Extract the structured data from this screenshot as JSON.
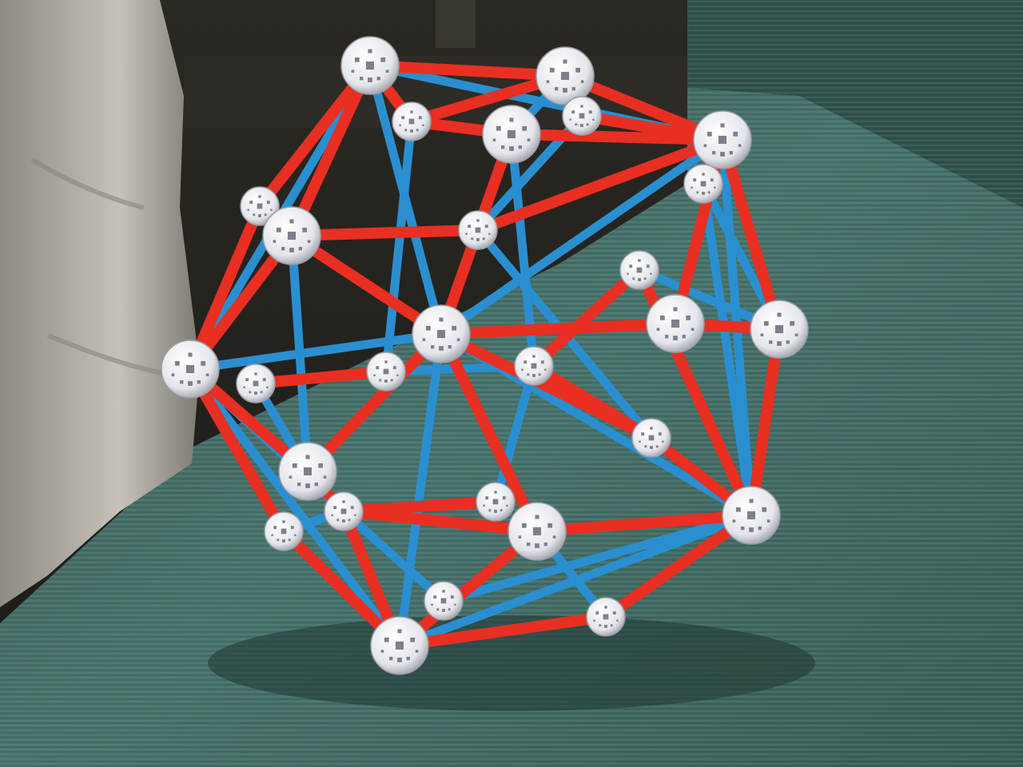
{
  "photo": {
    "subject": "zometool-polyhedron-model",
    "colors": {
      "couch": "#3f6660",
      "couch_light": "#5a8a83",
      "couch_dark": "#2a4743",
      "background_wall": "#2a2622",
      "cushion": "#c9c5ba",
      "strut_red": "#e82f22",
      "strut_blue": "#2a8fd0",
      "node_white": "#f2f2f4",
      "node_shadow": "#9a9ca6"
    }
  }
}
